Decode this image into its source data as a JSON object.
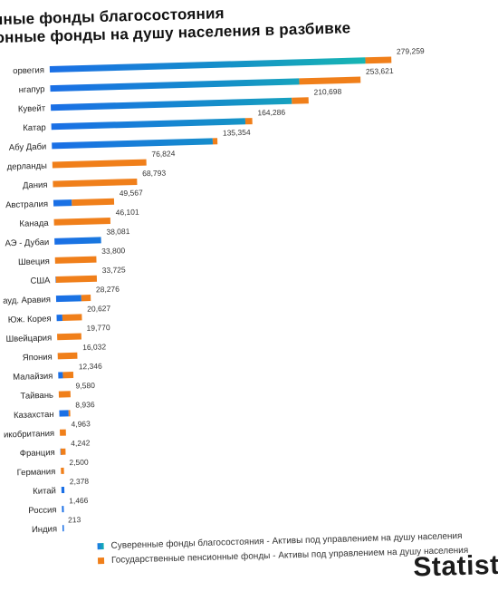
{
  "chart_data": {
    "type": "bar",
    "stacked": true,
    "orientation": "horizontal",
    "title_lines": [
      "енные фонды благосостояния",
      "ионные фонды на душу населения в разбивке"
    ],
    "categories": [
      "орвегия",
      "нгапур",
      "Кувейт",
      "Катар",
      "Абу Даби",
      "дерланды",
      "Дания",
      "Австралия",
      "Канада",
      "АЭ - Дубаи",
      "Швеция",
      "США",
      "ауд. Аравия",
      "Юж. Корея",
      "Швейцария",
      "Япония",
      "Малайзия",
      "Тайвань",
      "Казахстан",
      "еликобритания",
      "Франция",
      "Германия",
      "Китай",
      "Россия",
      "Индия"
    ],
    "totals": [
      "279,259",
      "253,621",
      "210,698",
      "164,286",
      "135,354",
      "76,824",
      "68,793",
      "49,567",
      "46,101",
      "38,081",
      "33,800",
      "33,725",
      "28,276",
      "20,627",
      "19,770",
      "16,032",
      "12,346",
      "9,580",
      "8,936",
      "4,963",
      "4,242",
      "2,500",
      "2,378",
      "1,466",
      "213"
    ],
    "series": [
      {
        "name": "Суверенные фонды благосостояния - Активы под управлением на душу населения",
        "color": "#1a73e8",
        "values": [
          258000,
          203500,
          197000,
          158600,
          131500,
          0,
          0,
          15000,
          0,
          38081,
          0,
          300,
          20600,
          4700,
          0,
          0,
          3800,
          0,
          7600,
          0,
          300,
          0,
          2378,
          1466,
          213
        ]
      },
      {
        "name": "Государственные пенсионные фонды - Активы под управлением на душу населения",
        "color": "#f07f1a",
        "values": [
          21259,
          50121,
          13698,
          5686,
          3854,
          76824,
          68793,
          34567,
          46101,
          0,
          33800,
          33425,
          7676,
          15927,
          19770,
          16032,
          8546,
          9580,
          1336,
          4963,
          3942,
          2500,
          0,
          0,
          0
        ]
      }
    ],
    "xlim": [
      0,
      290000
    ],
    "legend_position": "bottom",
    "gridlines": false
  },
  "legend": {
    "items": [
      "Суверенные фонды благосостояния - Активы под управлением на душу населения",
      "Государственные пенсионные фонды - Активы под управлением на душу населения"
    ]
  },
  "brand": "Statista"
}
